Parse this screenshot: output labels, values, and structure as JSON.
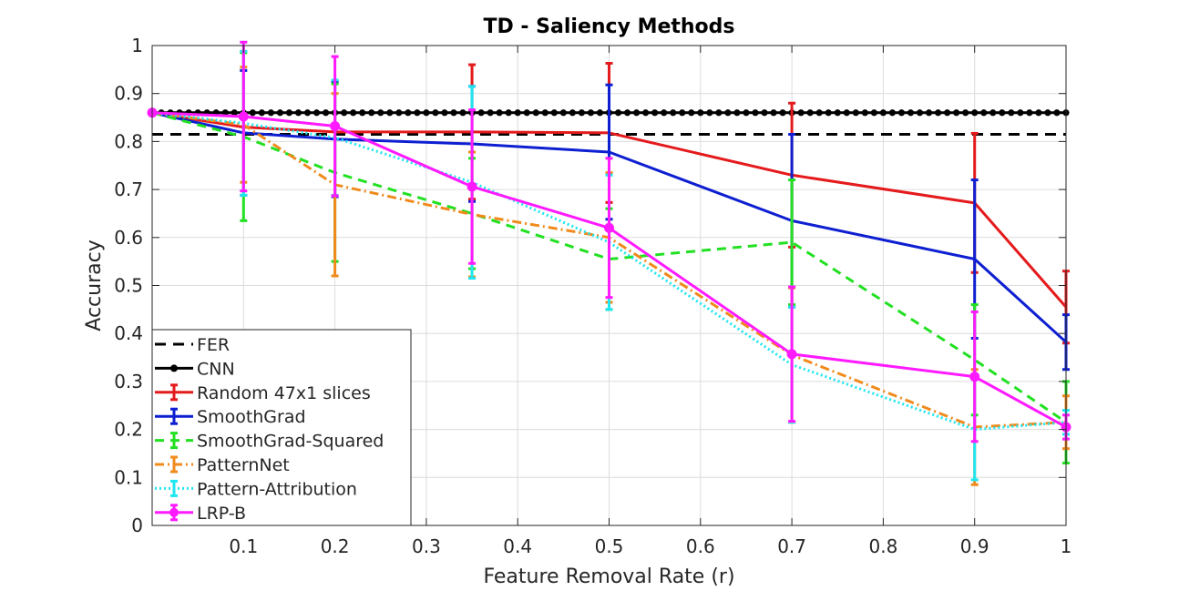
{
  "chart_data": {
    "type": "line",
    "title": "TD - Saliency Methods",
    "xlabel": "Feature Removal Rate (r)",
    "ylabel": "Accuracy",
    "xlim": [
      0,
      1
    ],
    "ylim": [
      0,
      1
    ],
    "grid": true,
    "legend_position": "bottom-left",
    "x_ticks": [
      0.1,
      0.2,
      0.3,
      0.4,
      0.5,
      0.6,
      0.7,
      0.8,
      0.9,
      1
    ],
    "x_tick_labels": [
      "0.1",
      "0.2",
      "0.3",
      "0.4",
      "0.5",
      "0.6",
      "0.7",
      "0.8",
      "0.9",
      "1"
    ],
    "y_ticks": [
      0,
      0.1,
      0.2,
      0.3,
      0.4,
      0.5,
      0.6,
      0.7,
      0.8,
      0.9,
      1
    ],
    "y_tick_labels": [
      "0",
      "0.1",
      "0.2",
      "0.3",
      "0.4",
      "0.5",
      "0.6",
      "0.7",
      "0.8",
      "0.9",
      "1"
    ],
    "x": [
      0,
      0.1,
      0.2,
      0.35,
      0.5,
      0.7,
      0.9,
      1
    ],
    "series": [
      {
        "name": "FER",
        "kind": "hline",
        "value": 0.815,
        "color": "#000000",
        "dash": "12,8"
      },
      {
        "name": "CNN",
        "kind": "hline-markers",
        "value": 0.86,
        "color": "#000000",
        "marker_count": 101
      },
      {
        "name": "Random 47x1 slices",
        "color": "#e41a1c",
        "dash": "",
        "values": [
          0.86,
          0.83,
          0.82,
          0.82,
          0.818,
          0.73,
          0.672,
          0.455
        ],
        "err": [
          0,
          0,
          0,
          0.14,
          0.145,
          0.15,
          0.145,
          0.075
        ]
      },
      {
        "name": "SmoothGrad",
        "color": "#0d1fd1",
        "dash": "",
        "values": [
          0.86,
          0.818,
          0.805,
          0.795,
          0.778,
          0.635,
          0.555,
          0.382
        ],
        "err": [
          0,
          0.13,
          0.12,
          0.12,
          0.14,
          0.18,
          0.165,
          0.057
        ]
      },
      {
        "name": "SmoothGrad-Squared",
        "color": "#22e022",
        "dash": "10,7",
        "values": [
          0.86,
          0.81,
          0.735,
          0.65,
          0.555,
          0.59,
          0.345,
          0.215
        ],
        "err": [
          0,
          0.175,
          0.185,
          0.115,
          0.105,
          0.13,
          0.115,
          0.085
        ]
      },
      {
        "name": "PatternNet",
        "color": "#f08a1c",
        "dash": "10,4,2,4",
        "values": [
          0.86,
          0.835,
          0.71,
          0.648,
          0.6,
          0.355,
          0.205,
          0.215
        ],
        "err": [
          0,
          0.12,
          0.19,
          0.13,
          0.135,
          0.14,
          0.12,
          0.055
        ]
      },
      {
        "name": "Pattern-Attribution",
        "color": "#1fe6f0",
        "dash": "2,3",
        "values": [
          0.86,
          0.838,
          0.808,
          0.715,
          0.59,
          0.335,
          0.2,
          0.215
        ],
        "err": [
          0,
          0.15,
          0.12,
          0.2,
          0.14,
          0.12,
          0.105,
          0.025
        ]
      },
      {
        "name": "LRP-B",
        "color": "#ff1aff",
        "dash": "",
        "marker": "circle",
        "values": [
          0.86,
          0.852,
          0.832,
          0.706,
          0.62,
          0.357,
          0.31,
          0.205
        ],
        "err": [
          0,
          0.155,
          0.145,
          0.16,
          0.145,
          0.14,
          0.135,
          0.025
        ]
      }
    ]
  }
}
